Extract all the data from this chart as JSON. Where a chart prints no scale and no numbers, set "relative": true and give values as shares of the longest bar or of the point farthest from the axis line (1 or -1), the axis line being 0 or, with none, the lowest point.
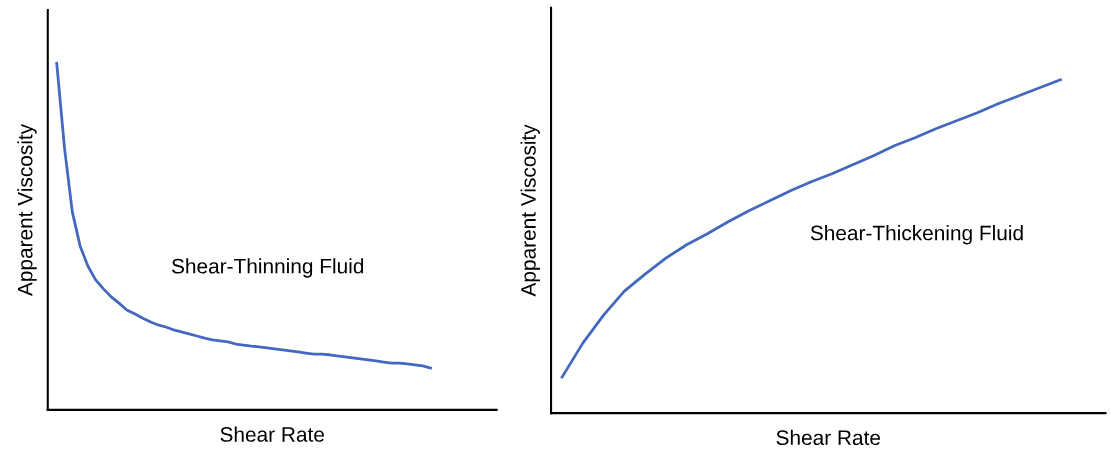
{
  "chart_data": [
    {
      "type": "line",
      "relative": true,
      "xlabel": "Shear Rate",
      "ylabel": "Apparent Viscosity",
      "annotations": [
        "Shear-Thinning Fluid"
      ],
      "tick_labels": false,
      "categories": [
        null,
        null,
        null,
        null,
        null,
        null,
        null,
        null,
        null,
        null,
        null,
        null,
        null,
        null,
        null,
        null,
        null,
        null,
        null,
        null,
        null,
        null,
        null,
        null,
        null,
        null,
        null,
        null,
        null,
        null,
        null,
        null,
        null,
        null,
        null,
        null,
        null,
        null,
        null,
        null,
        null,
        null,
        null,
        null,
        null,
        null,
        null,
        null,
        null
      ],
      "series": [
        {
          "color": "#4468bd",
          "values": [
            1.0,
            0.755,
            0.571,
            0.473,
            0.415,
            0.375,
            0.349,
            0.326,
            0.308,
            0.288,
            0.277,
            0.265,
            0.254,
            0.245,
            0.239,
            0.231,
            0.225,
            0.219,
            0.213,
            0.207,
            0.202,
            0.199,
            0.196,
            0.19,
            0.187,
            0.184,
            0.182,
            0.179,
            0.176,
            0.173,
            0.17,
            0.167,
            0.164,
            0.161,
            0.161,
            0.159,
            0.156,
            0.153,
            0.15,
            0.147,
            0.144,
            0.141,
            0.138,
            0.135,
            0.135,
            0.133,
            0.13,
            0.127,
            0.121
          ]
        }
      ]
    },
    {
      "type": "line",
      "relative": true,
      "xlabel": "Shear Rate",
      "ylabel": "Apparent Viscosity",
      "annotations": [
        "Shear-Thickening Fluid"
      ],
      "tick_labels": false,
      "categories": [
        null,
        null,
        null,
        null,
        null,
        null,
        null,
        null,
        null,
        null,
        null,
        null,
        null,
        null,
        null,
        null,
        null,
        null,
        null,
        null,
        null,
        null,
        null,
        null,
        null
      ],
      "series": [
        {
          "color": "#4468bd",
          "values": [
            0.108,
            0.21,
            0.294,
            0.366,
            0.417,
            0.465,
            0.505,
            0.538,
            0.574,
            0.607,
            0.637,
            0.667,
            0.694,
            0.718,
            0.745,
            0.772,
            0.802,
            0.826,
            0.853,
            0.877,
            0.901,
            0.928,
            0.952,
            0.976,
            1.0
          ]
        }
      ]
    }
  ]
}
